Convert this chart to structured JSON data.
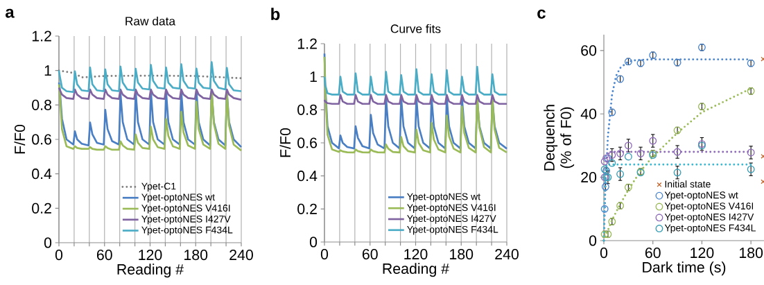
{
  "chart_data": [
    {
      "type": "line",
      "title": "Raw data",
      "xlabel": "Reading #",
      "ylabel": "F/F0",
      "annotations": [
        "a"
      ],
      "x": [
        0,
        1,
        4,
        10,
        19,
        21,
        24,
        30,
        39,
        41,
        44,
        50,
        59,
        61,
        64,
        70,
        79,
        81,
        84,
        90,
        99,
        101,
        104,
        110,
        119,
        121,
        124,
        130,
        139,
        141,
        144,
        150,
        159,
        161,
        164,
        170,
        179,
        181,
        184,
        190,
        199,
        201,
        204,
        210,
        219,
        221,
        224,
        230,
        240
      ],
      "xlim": [
        0,
        240
      ],
      "ylim": [
        0,
        1.2
      ],
      "xticks": [
        0,
        {
          "value": 20,
          "label": null
        },
        {
          "value": 40,
          "label": null
        },
        60,
        {
          "value": 80,
          "label": null
        },
        {
          "value": 100,
          "label": null
        },
        120,
        {
          "value": 140,
          "label": null
        },
        {
          "value": 160,
          "label": null
        },
        180,
        {
          "value": 200,
          "label": null
        },
        {
          "value": 220,
          "label": null
        },
        240
      ],
      "yticks": [
        0,
        0.2,
        0.4,
        0.6,
        0.8,
        1,
        1.2
      ],
      "grid": "x",
      "legend": "bottom right",
      "series": [
        {
          "name": "Ypet-C1",
          "color": "#808080",
          "line_style": "dotted",
          "x": [
            0,
            20,
            30,
            60,
            120,
            180,
            240
          ],
          "values": [
            1.0,
            0.985,
            0.96,
            0.968,
            0.97,
            0.968,
            0.955
          ]
        },
        {
          "name": "Ypet-optoNES wt",
          "color": "#4a7fc4",
          "values": [
            0.93,
            0.9,
            0.72,
            0.6,
            0.57,
            0.647,
            0.6,
            0.575,
            0.565,
            0.698,
            0.63,
            0.58,
            0.57,
            0.772,
            0.66,
            0.59,
            0.57,
            0.87,
            0.7,
            0.6,
            0.57,
            0.88,
            0.7,
            0.6,
            0.57,
            0.88,
            0.7,
            0.6,
            0.57,
            0.88,
            0.7,
            0.6,
            0.57,
            0.88,
            0.7,
            0.6,
            0.57,
            0.88,
            0.7,
            0.6,
            0.565,
            0.88,
            0.7,
            0.6,
            0.565,
            0.88,
            0.7,
            0.6,
            0.555
          ]
        },
        {
          "name": "Ypet-optoNES V416I",
          "color": "#9bbb59",
          "values": [
            0.92,
            0.88,
            0.66,
            0.56,
            0.545,
            0.56,
            0.55,
            0.545,
            0.545,
            0.555,
            0.545,
            0.54,
            0.54,
            0.56,
            0.55,
            0.54,
            0.54,
            0.589,
            0.565,
            0.545,
            0.54,
            0.629,
            0.58,
            0.55,
            0.545,
            0.674,
            0.6,
            0.555,
            0.545,
            0.718,
            0.62,
            0.56,
            0.545,
            0.76,
            0.64,
            0.565,
            0.545,
            0.819,
            0.66,
            0.57,
            0.545,
            0.886,
            0.69,
            0.575,
            0.545,
            0.872,
            0.68,
            0.57,
            0.535
          ]
        },
        {
          "name": "Ypet-optoNES I427V",
          "color": "#8064a2",
          "values": [
            0.9,
            0.89,
            0.86,
            0.84,
            0.835,
            0.89,
            0.86,
            0.84,
            0.835,
            0.89,
            0.86,
            0.84,
            0.835,
            0.89,
            0.86,
            0.84,
            0.835,
            0.89,
            0.86,
            0.84,
            0.835,
            0.89,
            0.86,
            0.84,
            0.835,
            0.89,
            0.86,
            0.84,
            0.835,
            0.89,
            0.86,
            0.84,
            0.835,
            0.89,
            0.86,
            0.84,
            0.835,
            0.89,
            0.86,
            0.84,
            0.835,
            0.89,
            0.86,
            0.84,
            0.835,
            0.89,
            0.86,
            0.84,
            0.83
          ]
        },
        {
          "name": "Ypet-optoNES F434L",
          "color": "#4bacc6",
          "values": [
            1.0,
            0.97,
            0.9,
            0.88,
            0.875,
            0.995,
            0.92,
            0.885,
            0.88,
            1.017,
            0.92,
            0.885,
            0.88,
            1.006,
            0.92,
            0.885,
            0.88,
            1.023,
            0.93,
            0.89,
            0.885,
            1.01,
            0.93,
            0.895,
            0.89,
            1.033,
            0.94,
            0.9,
            0.895,
            1.017,
            0.93,
            0.9,
            0.895,
            1.037,
            0.94,
            0.9,
            0.895,
            1.011,
            0.93,
            0.9,
            0.895,
            1.049,
            0.94,
            0.9,
            0.89,
            1.015,
            0.92,
            0.885,
            0.88
          ]
        }
      ]
    },
    {
      "type": "line",
      "title": "Curve fits",
      "xlabel": "Reading #",
      "ylabel": "F/F0",
      "annotations": [
        "b"
      ],
      "x": [
        0,
        1,
        4,
        10,
        19,
        21,
        24,
        30,
        39,
        41,
        44,
        50,
        59,
        61,
        64,
        70,
        79,
        81,
        84,
        90,
        99,
        101,
        104,
        110,
        119,
        121,
        124,
        130,
        139,
        141,
        144,
        150,
        159,
        161,
        164,
        170,
        179,
        181,
        184,
        190,
        199,
        201,
        204,
        210,
        219,
        221,
        224,
        230,
        240
      ],
      "xlim": [
        0,
        240
      ],
      "ylim": [
        0,
        1.2
      ],
      "xticks": [
        0,
        {
          "value": 20,
          "label": null
        },
        {
          "value": 40,
          "label": null
        },
        60,
        {
          "value": 80,
          "label": null
        },
        {
          "value": 100,
          "label": null
        },
        120,
        {
          "value": 140,
          "label": null
        },
        {
          "value": 160,
          "label": null
        },
        180,
        {
          "value": 200,
          "label": null
        },
        {
          "value": 220,
          "label": null
        },
        240
      ],
      "yticks": [
        0,
        0.2,
        0.4,
        0.6,
        0.8,
        1,
        1.2
      ],
      "grid": "x",
      "legend": "bottom right",
      "series": [
        {
          "name": "Ypet-optoNES wt",
          "color": "#4a7fc4",
          "values": [
            1.14,
            0.95,
            0.7,
            0.6,
            0.567,
            0.645,
            0.6,
            0.575,
            0.566,
            0.7,
            0.63,
            0.58,
            0.566,
            0.77,
            0.66,
            0.59,
            0.566,
            0.87,
            0.7,
            0.6,
            0.566,
            0.87,
            0.7,
            0.6,
            0.566,
            0.87,
            0.7,
            0.6,
            0.566,
            0.87,
            0.7,
            0.6,
            0.566,
            0.87,
            0.7,
            0.6,
            0.566,
            0.87,
            0.7,
            0.6,
            0.566,
            0.87,
            0.7,
            0.6,
            0.566,
            0.87,
            0.7,
            0.6,
            0.565
          ]
        },
        {
          "name": "Ypet-optoNES V416I",
          "color": "#9bbb59",
          "values": [
            1.12,
            0.92,
            0.65,
            0.56,
            0.545,
            0.555,
            0.548,
            0.543,
            0.542,
            0.56,
            0.55,
            0.543,
            0.542,
            0.56,
            0.55,
            0.543,
            0.542,
            0.59,
            0.565,
            0.545,
            0.542,
            0.635,
            0.58,
            0.55,
            0.542,
            0.68,
            0.6,
            0.555,
            0.542,
            0.72,
            0.62,
            0.56,
            0.542,
            0.765,
            0.64,
            0.565,
            0.542,
            0.82,
            0.66,
            0.57,
            0.542,
            0.88,
            0.69,
            0.575,
            0.542,
            0.87,
            0.68,
            0.57,
            0.542
          ]
        },
        {
          "name": "Ypet-optoNES I427V",
          "color": "#8064a2",
          "values": [
            0.86,
            0.85,
            0.84,
            0.836,
            0.836,
            0.89,
            0.85,
            0.836,
            0.836,
            0.89,
            0.85,
            0.836,
            0.836,
            0.89,
            0.85,
            0.836,
            0.836,
            0.89,
            0.85,
            0.836,
            0.836,
            0.89,
            0.85,
            0.836,
            0.836,
            0.89,
            0.85,
            0.836,
            0.836,
            0.89,
            0.85,
            0.836,
            0.836,
            0.89,
            0.85,
            0.836,
            0.836,
            0.89,
            0.85,
            0.836,
            0.836,
            0.89,
            0.85,
            0.836,
            0.836,
            0.89,
            0.85,
            0.836,
            0.836
          ]
        },
        {
          "name": "Ypet-optoNES F434L",
          "color": "#4bacc6",
          "values": [
            1.0,
            0.95,
            0.9,
            0.892,
            0.892,
            1.0,
            0.91,
            0.892,
            0.892,
            1.02,
            0.91,
            0.892,
            0.892,
            1.0,
            0.91,
            0.892,
            0.892,
            1.03,
            0.91,
            0.892,
            0.892,
            1.01,
            0.91,
            0.892,
            0.892,
            1.045,
            0.91,
            0.892,
            0.892,
            1.015,
            0.91,
            0.892,
            0.892,
            1.04,
            0.91,
            0.892,
            0.892,
            1.0,
            0.91,
            0.892,
            0.892,
            1.06,
            0.91,
            0.892,
            0.892,
            1.015,
            0.91,
            0.892,
            0.892
          ]
        }
      ]
    },
    {
      "type": "scatter",
      "xlabel": "Dark time (s)",
      "ylabel": "Dequench (% of F0)",
      "annotations": [
        "c"
      ],
      "xlim": [
        0,
        196
      ],
      "ylim": [
        0,
        65
      ],
      "xticks": [
        0,
        60,
        120,
        180
      ],
      "yticks": [
        0,
        20,
        40,
        60
      ],
      "legend": "bottom right",
      "marker": "circle",
      "series": [
        {
          "name": "Initial state",
          "color": "#c0622a",
          "marker": "cross",
          "x": [
            195,
            195,
            195
          ],
          "values": [
            57.3,
            26.6,
            18.6
          ]
        },
        {
          "name": "Ypet-optoNES wt",
          "color": "#4a86d0",
          "x": [
            1,
            2,
            3,
            5,
            10,
            20,
            30,
            45,
            60,
            90,
            120,
            180
          ],
          "values": [
            10,
            17,
            22,
            26,
            40.5,
            51,
            56.5,
            56,
            58.5,
            56.2,
            61,
            56
          ],
          "errors": [
            null,
            1,
            1,
            null,
            1,
            1,
            1,
            1,
            1,
            1,
            1,
            1
          ]
        },
        {
          "name": "Ypet-optoNES V416I",
          "color": "#9bbb59",
          "x": [
            1,
            5,
            10,
            20,
            30,
            45,
            60,
            90,
            120,
            180
          ],
          "values": [
            2,
            2,
            6,
            11,
            16.8,
            21.8,
            27.5,
            34.8,
            42.3,
            47.2
          ],
          "errors": [
            1,
            1,
            1,
            1,
            1,
            1,
            1,
            1,
            1,
            1
          ]
        },
        {
          "name": "Ypet-optoNES I427V",
          "color": "#8e6bb8",
          "x": [
            1,
            1,
            3,
            10,
            20,
            30,
            45,
            60,
            90,
            120,
            180
          ],
          "values": [
            20,
            25,
            26,
            27,
            27.5,
            30,
            27.5,
            31.5,
            28,
            30.5,
            27.8
          ],
          "errors": [
            null,
            null,
            null,
            2,
            2,
            2,
            2,
            2,
            2,
            2,
            2
          ]
        },
        {
          "name": "Ypet-optoNES F434L",
          "color": "#3a9fb5",
          "x": [
            1,
            3,
            5,
            10,
            20,
            30,
            45,
            60,
            90,
            120,
            180
          ],
          "values": [
            22.5,
            20,
            20,
            24.5,
            21,
            26.5,
            21.5,
            27,
            21.5,
            30,
            22.5
          ],
          "errors": [
            null,
            null,
            2,
            null,
            2,
            null,
            null,
            null,
            2,
            null,
            2
          ]
        },
        {
          "type": "line",
          "line_style": "dotted",
          "marker": "none",
          "color": "#4a86d0",
          "x": [
            0,
            2,
            5,
            10,
            15,
            20,
            30,
            40,
            60,
            180
          ],
          "values": [
            0,
            18,
            33,
            46,
            52,
            54.5,
            56.5,
            57,
            57.2,
            57.2
          ]
        },
        {
          "type": "line",
          "line_style": "dotted",
          "marker": "none",
          "color": "#9bbb59",
          "x": [
            0,
            10,
            20,
            30,
            45,
            60,
            90,
            120,
            180
          ],
          "values": [
            0,
            6.5,
            11.5,
            16,
            22,
            26.5,
            34,
            40.5,
            48
          ]
        },
        {
          "type": "line",
          "line_style": "dotted",
          "marker": "none",
          "color": "#8e6bb8",
          "x": [
            0,
            2,
            5,
            180
          ],
          "values": [
            0,
            22,
            28,
            28
          ]
        },
        {
          "type": "line",
          "line_style": "dotted",
          "marker": "none",
          "color": "#40b8d0",
          "x": [
            0,
            1,
            3,
            180
          ],
          "values": [
            0,
            15,
            24,
            24
          ]
        }
      ]
    }
  ]
}
